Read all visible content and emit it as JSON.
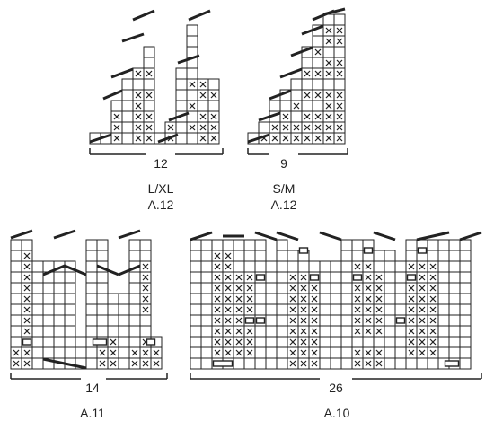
{
  "diagrams": [
    {
      "id": "A.12-LXL",
      "width_label": "12",
      "size_label": "L/XL",
      "name": "A.12",
      "cols": 12,
      "rows": 12
    },
    {
      "id": "A.12-SM",
      "width_label": "9",
      "size_label": "S/M",
      "name": "A.12",
      "cols": 9,
      "rows": 12
    },
    {
      "id": "A.11",
      "width_label": "14",
      "name": "A.11",
      "cols": 14,
      "rows": 12
    },
    {
      "id": "A.10",
      "width_label": "26",
      "name": "A.10",
      "cols": 26,
      "rows": 12
    }
  ],
  "symbols": {
    "cross": "purl stitch",
    "rectangle": "bind-off marker",
    "diagonal_bar": "decrease"
  },
  "colors": {
    "line": "#222222",
    "background": "#ffffff"
  }
}
